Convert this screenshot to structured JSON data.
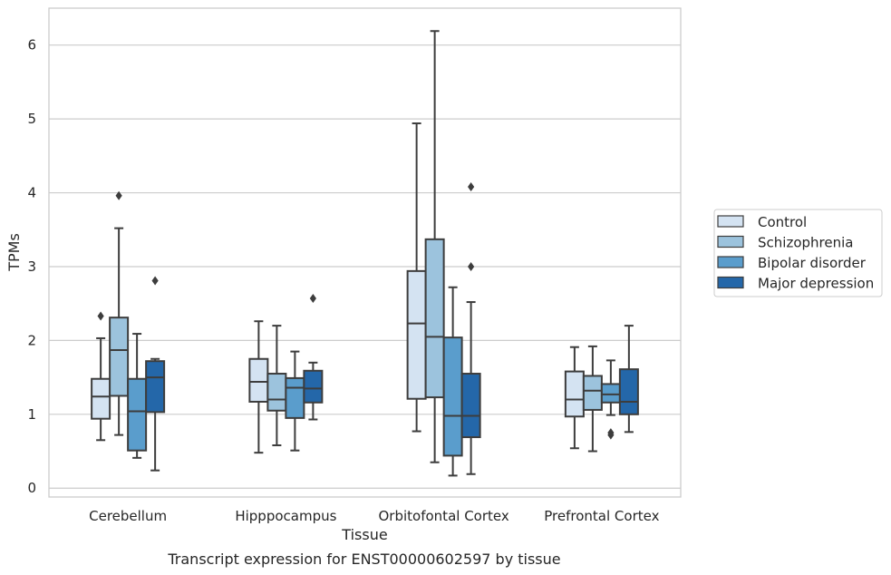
{
  "caption": "Transcript expression for ENST00000602597 by tissue",
  "chart_data": {
    "type": "box",
    "xlabel": "Tissue",
    "ylabel": "TPMs",
    "ylim": [
      -0.12,
      6.5
    ],
    "yticks": [
      0,
      1,
      2,
      3,
      4,
      5,
      6
    ],
    "grid": true,
    "legend_position": "right",
    "categories": [
      "Cerebellum",
      "Hipppocampus",
      "Orbitofontal Cortex",
      "Prefrontal Cortex"
    ],
    "series": [
      {
        "name": "Control",
        "color": "#d4e3f2",
        "boxes": [
          {
            "whisker_low": 0.65,
            "q1": 0.94,
            "median": 1.24,
            "q3": 1.48,
            "whisker_high": 2.03,
            "outliers": [
              2.33
            ]
          },
          {
            "whisker_low": 0.48,
            "q1": 1.17,
            "median": 1.44,
            "q3": 1.75,
            "whisker_high": 2.26,
            "outliers": []
          },
          {
            "whisker_low": 0.77,
            "q1": 1.21,
            "median": 2.23,
            "q3": 2.94,
            "whisker_high": 4.94,
            "outliers": []
          },
          {
            "whisker_low": 0.54,
            "q1": 0.97,
            "median": 1.2,
            "q3": 1.58,
            "whisker_high": 1.91,
            "outliers": []
          }
        ]
      },
      {
        "name": "Schizophrenia",
        "color": "#9cc3dd",
        "boxes": [
          {
            "whisker_low": 0.72,
            "q1": 1.25,
            "median": 1.87,
            "q3": 2.31,
            "whisker_high": 3.52,
            "outliers": [
              3.96
            ]
          },
          {
            "whisker_low": 0.58,
            "q1": 1.05,
            "median": 1.2,
            "q3": 1.55,
            "whisker_high": 2.2,
            "outliers": []
          },
          {
            "whisker_low": 0.35,
            "q1": 1.23,
            "median": 2.05,
            "q3": 3.37,
            "whisker_high": 6.19,
            "outliers": []
          },
          {
            "whisker_low": 0.5,
            "q1": 1.06,
            "median": 1.32,
            "q3": 1.52,
            "whisker_high": 1.92,
            "outliers": []
          }
        ]
      },
      {
        "name": "Bipolar disorder",
        "color": "#5a9dcc",
        "boxes": [
          {
            "whisker_low": 0.41,
            "q1": 0.51,
            "median": 1.04,
            "q3": 1.48,
            "whisker_high": 2.09,
            "outliers": []
          },
          {
            "whisker_low": 0.51,
            "q1": 0.95,
            "median": 1.36,
            "q3": 1.49,
            "whisker_high": 1.85,
            "outliers": []
          },
          {
            "whisker_low": 0.17,
            "q1": 0.44,
            "median": 0.98,
            "q3": 2.04,
            "whisker_high": 2.72,
            "outliers": []
          },
          {
            "whisker_low": 0.99,
            "q1": 1.16,
            "median": 1.27,
            "q3": 1.41,
            "whisker_high": 1.73,
            "outliers": [
              0.72,
              0.75
            ]
          }
        ]
      },
      {
        "name": "Major depression",
        "color": "#2467a9",
        "boxes": [
          {
            "whisker_low": 0.24,
            "q1": 1.03,
            "median": 1.5,
            "q3": 1.72,
            "whisker_high": 1.75,
            "outliers": [
              2.81
            ]
          },
          {
            "whisker_low": 0.93,
            "q1": 1.16,
            "median": 1.35,
            "q3": 1.59,
            "whisker_high": 1.7,
            "outliers": [
              2.57
            ]
          },
          {
            "whisker_low": 0.19,
            "q1": 0.69,
            "median": 0.98,
            "q3": 1.55,
            "whisker_high": 2.52,
            "outliers": [
              3.0,
              4.08
            ]
          },
          {
            "whisker_low": 0.76,
            "q1": 1.0,
            "median": 1.17,
            "q3": 1.61,
            "whisker_high": 2.2,
            "outliers": []
          }
        ]
      }
    ]
  }
}
